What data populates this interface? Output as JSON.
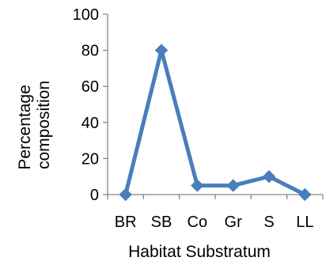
{
  "chart_data": {
    "type": "line",
    "title": "",
    "xlabel": "Habitat Substratum",
    "ylabel_lines": [
      "Percentage",
      "composition"
    ],
    "categories": [
      "BR",
      "SB",
      "Co",
      "Gr",
      "S",
      "LL"
    ],
    "series": [
      {
        "values": [
          0,
          80,
          5,
          5,
          10,
          0
        ]
      }
    ],
    "ylim": [
      0,
      100
    ],
    "yticks": [
      "0",
      "20",
      "40",
      "60",
      "80",
      "100"
    ],
    "marker": "diamond",
    "grid": false,
    "legend": "none",
    "colors": {
      "series": "#4A7EBB",
      "axis": "#868686",
      "text": "#000000"
    }
  }
}
